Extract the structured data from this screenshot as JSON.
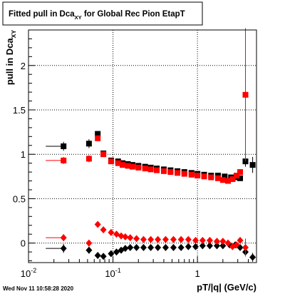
{
  "title": {
    "prefix": "Fitted pull in Dca",
    "subscript": "XY",
    "suffix": " for Global Rec Pion EtapT"
  },
  "footer_timestamp": "Wed Nov 11 10:58:28 2020",
  "chart_data": {
    "type": "scatter",
    "xlabel": "pT/|q| (GeV/c)",
    "ylabel": {
      "main": "pull in Dca",
      "subscript": "XY"
    },
    "x_scale": "log",
    "xlim": [
      0.01,
      5.0
    ],
    "ylim": [
      -0.22,
      2.4
    ],
    "grid": true,
    "x_ticks": [
      {
        "value": 0.01,
        "label_base": "10",
        "label_exp": "-2"
      },
      {
        "value": 0.1,
        "label_base": "10",
        "label_exp": "-1"
      },
      {
        "value": 1,
        "label": "1"
      }
    ],
    "y_ticks": [
      {
        "value": 0,
        "label": "0"
      },
      {
        "value": 0.5,
        "label": "0.5"
      },
      {
        "value": 1,
        "label": "1"
      },
      {
        "value": 1.5,
        "label": "1.5"
      },
      {
        "value": 2,
        "label": "2"
      }
    ],
    "series": [
      {
        "color": "#000000",
        "marker": "square",
        "points": [
          {
            "x": 0.026,
            "y": 1.09,
            "xerr_lo": 0.016,
            "xerr_hi": 0.026,
            "yerr": 0.05
          },
          {
            "x": 0.052,
            "y": 1.12,
            "yerr": 0.05
          },
          {
            "x": 0.066,
            "y": 1.23,
            "yerr": 0.03
          },
          {
            "x": 0.077,
            "y": 1.01,
            "yerr": 0.02
          },
          {
            "x": 0.095,
            "y": 0.93
          },
          {
            "x": 0.115,
            "y": 0.92
          },
          {
            "x": 0.13,
            "y": 0.9
          },
          {
            "x": 0.15,
            "y": 0.89
          },
          {
            "x": 0.17,
            "y": 0.88
          },
          {
            "x": 0.2,
            "y": 0.87
          },
          {
            "x": 0.24,
            "y": 0.86
          },
          {
            "x": 0.28,
            "y": 0.85
          },
          {
            "x": 0.33,
            "y": 0.84
          },
          {
            "x": 0.4,
            "y": 0.83
          },
          {
            "x": 0.48,
            "y": 0.82
          },
          {
            "x": 0.58,
            "y": 0.81
          },
          {
            "x": 0.7,
            "y": 0.8
          },
          {
            "x": 0.85,
            "y": 0.79
          },
          {
            "x": 1.0,
            "y": 0.78
          },
          {
            "x": 1.2,
            "y": 0.77
          },
          {
            "x": 1.45,
            "y": 0.76
          },
          {
            "x": 1.75,
            "y": 0.76
          },
          {
            "x": 2.1,
            "y": 0.75
          },
          {
            "x": 2.5,
            "y": 0.74
          },
          {
            "x": 2.9,
            "y": 0.74
          },
          {
            "x": 3.2,
            "y": 0.73
          },
          {
            "x": 3.7,
            "y": 0.92,
            "yerr": 0.06
          },
          {
            "x": 4.5,
            "y": 0.88,
            "yerr": 0.09
          }
        ]
      },
      {
        "color": "#ff0000",
        "marker": "square",
        "points": [
          {
            "x": 0.026,
            "y": 0.93,
            "xerr_lo": 0.016,
            "xerr_hi": 0.026,
            "yerr": 0.04
          },
          {
            "x": 0.052,
            "y": 0.95,
            "yerr": 0.04
          },
          {
            "x": 0.066,
            "y": 1.18,
            "yerr": 0.03
          },
          {
            "x": 0.077,
            "y": 1.0,
            "yerr": 0.02
          },
          {
            "x": 0.095,
            "y": 0.92
          },
          {
            "x": 0.115,
            "y": 0.9
          },
          {
            "x": 0.13,
            "y": 0.88
          },
          {
            "x": 0.15,
            "y": 0.87
          },
          {
            "x": 0.17,
            "y": 0.86
          },
          {
            "x": 0.2,
            "y": 0.85
          },
          {
            "x": 0.24,
            "y": 0.84
          },
          {
            "x": 0.28,
            "y": 0.83
          },
          {
            "x": 0.33,
            "y": 0.82
          },
          {
            "x": 0.4,
            "y": 0.81
          },
          {
            "x": 0.48,
            "y": 0.8
          },
          {
            "x": 0.58,
            "y": 0.79
          },
          {
            "x": 0.7,
            "y": 0.78
          },
          {
            "x": 0.85,
            "y": 0.77
          },
          {
            "x": 1.0,
            "y": 0.76
          },
          {
            "x": 1.2,
            "y": 0.75
          },
          {
            "x": 1.45,
            "y": 0.74
          },
          {
            "x": 1.75,
            "y": 0.73
          },
          {
            "x": 2.0,
            "y": 0.71
          },
          {
            "x": 2.3,
            "y": 0.7
          },
          {
            "x": 2.6,
            "y": 0.72
          },
          {
            "x": 2.9,
            "y": 0.76
          },
          {
            "x": 3.2,
            "y": 0.8
          },
          {
            "x": 3.7,
            "y": 1.67,
            "yerr": 0.75
          }
        ]
      },
      {
        "color": "#000000",
        "marker": "diamond",
        "points": [
          {
            "x": 0.026,
            "y": -0.06,
            "xerr_lo": 0.016,
            "xerr_hi": 0.026,
            "yerr": 0.05
          },
          {
            "x": 0.052,
            "y": -0.08,
            "yerr": 0.04
          },
          {
            "x": 0.066,
            "y": -0.14,
            "yerr": 0.02
          },
          {
            "x": 0.077,
            "y": -0.15
          },
          {
            "x": 0.095,
            "y": -0.12
          },
          {
            "x": 0.11,
            "y": -0.1
          },
          {
            "x": 0.125,
            "y": -0.08
          },
          {
            "x": 0.14,
            "y": -0.06
          },
          {
            "x": 0.16,
            "y": -0.05
          },
          {
            "x": 0.19,
            "y": -0.05
          },
          {
            "x": 0.23,
            "y": -0.05
          },
          {
            "x": 0.28,
            "y": -0.05
          },
          {
            "x": 0.34,
            "y": -0.05
          },
          {
            "x": 0.42,
            "y": -0.05
          },
          {
            "x": 0.52,
            "y": -0.05
          },
          {
            "x": 0.64,
            "y": -0.05
          },
          {
            "x": 0.78,
            "y": -0.04
          },
          {
            "x": 0.95,
            "y": -0.04
          },
          {
            "x": 1.15,
            "y": -0.03
          },
          {
            "x": 1.4,
            "y": -0.03
          },
          {
            "x": 1.7,
            "y": -0.03
          },
          {
            "x": 2.0,
            "y": -0.03
          },
          {
            "x": 2.4,
            "y": -0.02
          },
          {
            "x": 2.8,
            "y": -0.02
          },
          {
            "x": 3.2,
            "y": -0.05
          },
          {
            "x": 3.7,
            "y": -0.1,
            "yerr": 0.05
          },
          {
            "x": 4.5,
            "y": -0.16,
            "yerr": 0.05
          }
        ]
      },
      {
        "color": "#ff0000",
        "marker": "diamond",
        "points": [
          {
            "x": 0.026,
            "y": 0.06,
            "xerr_lo": 0.016,
            "xerr_hi": 0.026,
            "yerr": 0.04
          },
          {
            "x": 0.052,
            "y": 0.0,
            "yerr": 0.03
          },
          {
            "x": 0.066,
            "y": 0.21,
            "yerr": 0.02
          },
          {
            "x": 0.077,
            "y": 0.15
          },
          {
            "x": 0.095,
            "y": 0.12
          },
          {
            "x": 0.11,
            "y": 0.1
          },
          {
            "x": 0.125,
            "y": 0.08
          },
          {
            "x": 0.14,
            "y": 0.07
          },
          {
            "x": 0.16,
            "y": 0.06
          },
          {
            "x": 0.19,
            "y": 0.05
          },
          {
            "x": 0.23,
            "y": 0.04
          },
          {
            "x": 0.28,
            "y": 0.04
          },
          {
            "x": 0.34,
            "y": 0.04
          },
          {
            "x": 0.42,
            "y": 0.04
          },
          {
            "x": 0.52,
            "y": 0.04
          },
          {
            "x": 0.64,
            "y": 0.04
          },
          {
            "x": 0.78,
            "y": 0.04
          },
          {
            "x": 0.95,
            "y": 0.03
          },
          {
            "x": 1.15,
            "y": 0.03
          },
          {
            "x": 1.4,
            "y": 0.03
          },
          {
            "x": 1.7,
            "y": 0.02
          },
          {
            "x": 2.0,
            "y": 0.02
          },
          {
            "x": 2.3,
            "y": 0.0
          },
          {
            "x": 2.6,
            "y": -0.04
          },
          {
            "x": 2.9,
            "y": -0.02
          },
          {
            "x": 3.2,
            "y": 0.03
          },
          {
            "x": 3.7,
            "y": -0.05,
            "yerr": 0.1
          }
        ]
      }
    ]
  }
}
